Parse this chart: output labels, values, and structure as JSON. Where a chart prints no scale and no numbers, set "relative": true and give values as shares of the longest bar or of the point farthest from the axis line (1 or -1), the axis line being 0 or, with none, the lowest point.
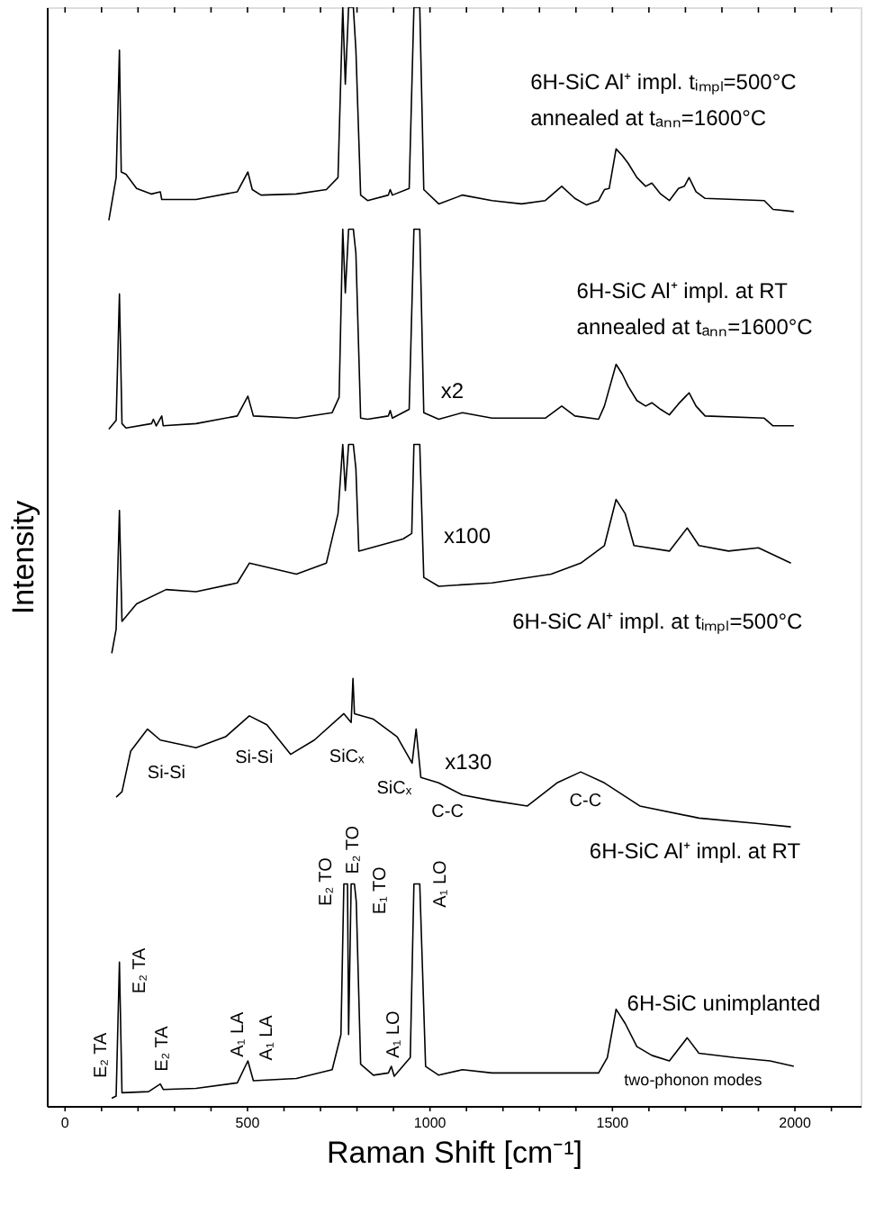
{
  "chart_data": {
    "type": "line",
    "relative": true,
    "xlabel": "Raman Shift [cm⁻¹]",
    "ylabel": "Intensity",
    "xlim": [
      -50,
      2180
    ],
    "tick_labels": "x",
    "marker": "none",
    "line_style": "solid",
    "xticks": [
      0,
      {
        "value": 100,
        "label": null
      },
      {
        "value": 200,
        "label": null
      },
      {
        "value": 300,
        "label": null
      },
      {
        "value": 400,
        "label": null
      },
      500,
      {
        "value": 600,
        "label": null
      },
      {
        "value": 700,
        "label": null
      },
      {
        "value": 800,
        "label": null
      },
      {
        "value": 900,
        "label": null
      },
      1000,
      {
        "value": 1100,
        "label": null
      },
      {
        "value": 1200,
        "label": null
      },
      {
        "value": 1300,
        "label": null
      },
      {
        "value": 1400,
        "label": null
      },
      1500,
      {
        "value": 1600,
        "label": null
      },
      {
        "value": 1700,
        "label": null
      },
      {
        "value": 1800,
        "label": null
      },
      {
        "value": 1900,
        "label": null
      },
      2000,
      {
        "value": 2100,
        "label": null
      }
    ],
    "series": [
      {
        "name": "6H-SiC Al⁺ impl.  tᵢₘₚₗ=500°C\nannealed at tₐₙₙ=1600°C",
        "color": "#000000",
        "x": [
          120,
          140,
          149,
          154,
          167,
          196,
          237,
          261,
          265,
          359,
          472,
          501,
          513,
          537,
          634,
          716,
          748,
          761,
          768,
          777,
          790,
          797,
          810,
          829,
          886,
          891,
          897,
          943,
          956,
          972,
          983,
          1024,
          1089,
          1170,
          1251,
          1316,
          1361,
          1397,
          1429,
          1462,
          1478,
          1491,
          1510,
          1527,
          1543,
          1567,
          1591,
          1608,
          1632,
          1656,
          1681,
          1697,
          1710,
          1729,
          1754,
          1835,
          1916,
          1940,
          1997
        ],
        "values": [
          0.806,
          0.845,
          0.961,
          0.85,
          0.848,
          0.835,
          0.83,
          0.832,
          0.825,
          0.825,
          0.832,
          0.85,
          0.834,
          0.829,
          0.83,
          0.834,
          0.845,
          1.0,
          0.93,
          1.0,
          1.0,
          0.961,
          0.829,
          0.824,
          0.829,
          0.834,
          0.829,
          0.835,
          1.0,
          1.0,
          0.834,
          0.821,
          0.829,
          0.824,
          0.821,
          0.824,
          0.837,
          0.826,
          0.82,
          0.824,
          0.834,
          0.835,
          0.871,
          0.865,
          0.858,
          0.845,
          0.837,
          0.84,
          0.83,
          0.824,
          0.835,
          0.837,
          0.845,
          0.832,
          0.826,
          0.825,
          0.824,
          0.816,
          0.814
        ]
      },
      {
        "name": "6H-SiC Al⁺ impl. at RT\nannealed at tₐₙₙ=1600°C",
        "color": "#000000",
        "x": [
          120,
          140,
          149,
          156,
          167,
          237,
          242,
          250,
          265,
          269,
          359,
          472,
          501,
          516,
          634,
          732,
          751,
          761,
          768,
          777,
          790,
          797,
          810,
          829,
          886,
          891,
          897,
          943,
          956,
          972,
          983,
          1024,
          1089,
          1170,
          1316,
          1361,
          1397,
          1462,
          1478,
          1510,
          1527,
          1543,
          1567,
          1591,
          1608,
          1632,
          1656,
          1681,
          1710,
          1729,
          1754,
          1916,
          1940,
          1997
        ],
        "values": [
          0.616,
          0.624,
          0.739,
          0.621,
          0.617,
          0.621,
          0.625,
          0.619,
          0.628,
          0.619,
          0.621,
          0.628,
          0.646,
          0.628,
          0.626,
          0.631,
          0.645,
          0.798,
          0.74,
          0.798,
          0.798,
          0.776,
          0.626,
          0.625,
          0.628,
          0.633,
          0.626,
          0.634,
          0.798,
          0.798,
          0.631,
          0.625,
          0.631,
          0.626,
          0.626,
          0.637,
          0.628,
          0.625,
          0.637,
          0.675,
          0.666,
          0.655,
          0.642,
          0.637,
          0.64,
          0.634,
          0.629,
          0.639,
          0.649,
          0.637,
          0.628,
          0.626,
          0.619,
          0.619
        ]
      },
      {
        "name": "6H-SiC Al⁺ impl. at tᵢₘₚₗ=500°C",
        "color": "#000000",
        "x": [
          128,
          140,
          149,
          156,
          196,
          277,
          359,
          472,
          505,
          634,
          716,
          748,
          761,
          768,
          777,
          790,
          797,
          805,
          926,
          950,
          956,
          972,
          983,
          1024,
          1170,
          1332,
          1413,
          1478,
          1510,
          1535,
          1559,
          1656,
          1705,
          1737,
          1818,
          1900,
          1989
        ],
        "values": [
          0.412,
          0.434,
          0.542,
          0.441,
          0.457,
          0.47,
          0.468,
          0.476,
          0.494,
          0.484,
          0.494,
          0.539,
          0.602,
          0.56,
          0.602,
          0.602,
          0.58,
          0.505,
          0.516,
          0.521,
          0.602,
          0.602,
          0.481,
          0.473,
          0.476,
          0.484,
          0.494,
          0.51,
          0.552,
          0.539,
          0.51,
          0.505,
          0.526,
          0.51,
          0.505,
          0.508,
          0.494
        ]
      },
      {
        "name": "6H-SiC Al⁺ impl. at RT",
        "color": "#000000",
        "x": [
          140,
          156,
          180,
          226,
          261,
          359,
          440,
          505,
          553,
          618,
          683,
          764,
          784,
          789,
          793,
          845,
          910,
          951,
          962,
          975,
          1024,
          1089,
          1170,
          1267,
          1348,
          1413,
          1478,
          1575,
          1737,
          1900,
          1989
        ],
        "values": [
          0.281,
          0.286,
          0.323,
          0.343,
          0.333,
          0.326,
          0.336,
          0.355,
          0.347,
          0.32,
          0.333,
          0.357,
          0.349,
          0.389,
          0.357,
          0.352,
          0.336,
          0.312,
          0.343,
          0.299,
          0.294,
          0.283,
          0.278,
          0.273,
          0.294,
          0.304,
          0.294,
          0.273,
          0.262,
          0.257,
          0.254
        ]
      },
      {
        "name": "6H-SiC unimplanted",
        "color": "#000000",
        "x": [
          128,
          140,
          149,
          156,
          229,
          261,
          269,
          359,
          472,
          501,
          516,
          634,
          732,
          756,
          764,
          774,
          777,
          784,
          793,
          798,
          810,
          845,
          886,
          894,
          902,
          946,
          956,
          972,
          988,
          1024,
          1089,
          1170,
          1332,
          1462,
          1486,
          1510,
          1535,
          1567,
          1608,
          1656,
          1705,
          1737,
          1835,
          1932,
          1997
        ],
        "values": [
          0.007,
          0.009,
          0.131,
          0.012,
          0.013,
          0.02,
          0.015,
          0.016,
          0.021,
          0.041,
          0.023,
          0.025,
          0.033,
          0.065,
          0.202,
          0.202,
          0.065,
          0.202,
          0.202,
          0.186,
          0.038,
          0.028,
          0.03,
          0.036,
          0.027,
          0.044,
          0.202,
          0.202,
          0.036,
          0.028,
          0.033,
          0.03,
          0.03,
          0.03,
          0.044,
          0.088,
          0.075,
          0.054,
          0.046,
          0.041,
          0.062,
          0.048,
          0.044,
          0.041,
          0.036
        ]
      }
    ],
    "annotations": [
      "E₂ TA",
      "E₂ TA",
      "E₂ TA",
      "A₁ LA",
      "A₁ LA",
      "E₂ TO",
      "E₂ TO",
      "E₁ TO",
      "A₁ LO",
      "A₁ LO",
      "x2",
      "x100",
      "Si-Si",
      "Si-Si",
      "SiCₓ",
      "SiCₓ",
      "x130",
      "C-C",
      "C-C",
      "two-phonon modes"
    ]
  }
}
